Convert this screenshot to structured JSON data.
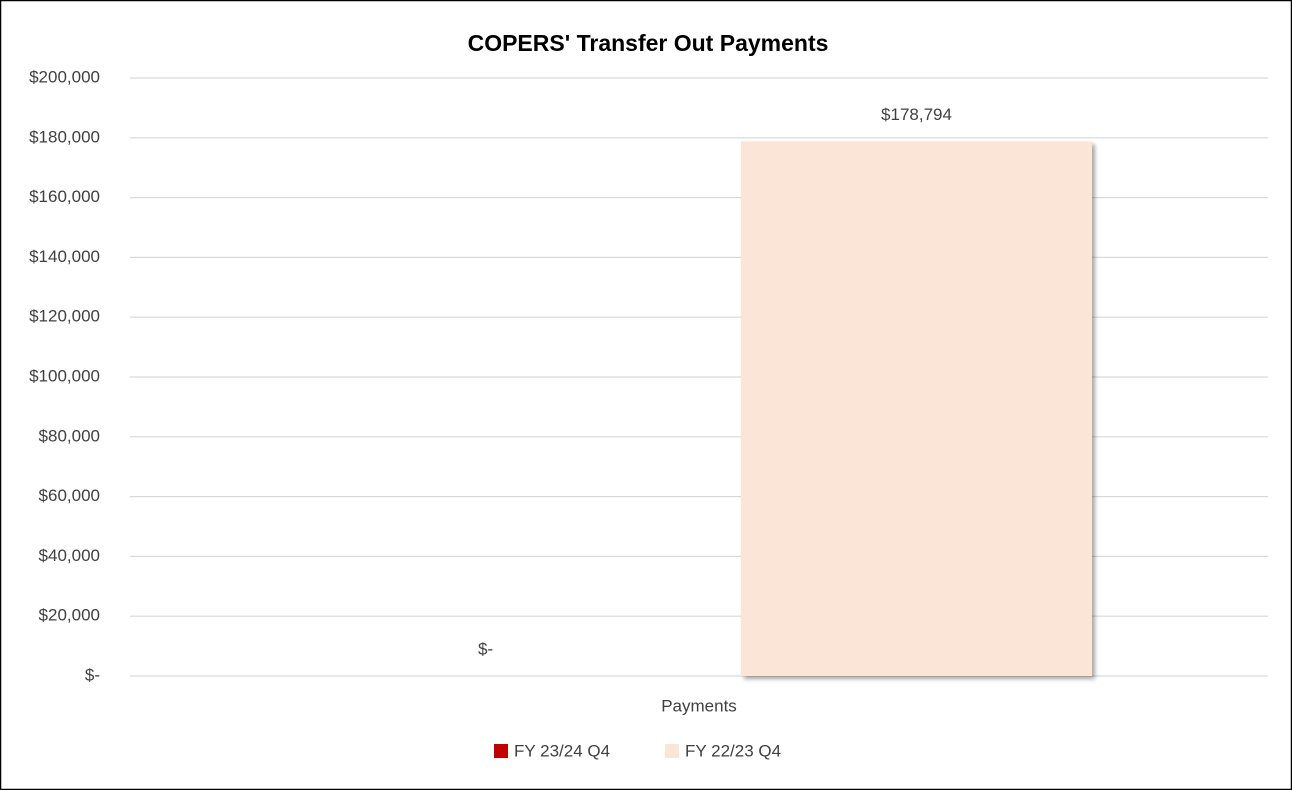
{
  "chart_data": {
    "type": "bar",
    "title": "COPERS' Transfer Out Payments",
    "categories": [
      "Payments"
    ],
    "series": [
      {
        "name": "FY 23/24 Q4",
        "color": "#c00000",
        "values": [
          0
        ],
        "value_labels": [
          "$-"
        ]
      },
      {
        "name": "FY 22/23 Q4",
        "color": "#fbe5d6",
        "values": [
          178794
        ],
        "value_labels": [
          "$178,794"
        ]
      }
    ],
    "ylim": [
      0,
      200000
    ],
    "yticks": [
      {
        "value": 0,
        "label": "$-"
      },
      {
        "value": 20000,
        "label": "$20,000"
      },
      {
        "value": 40000,
        "label": "$40,000"
      },
      {
        "value": 60000,
        "label": "$60,000"
      },
      {
        "value": 80000,
        "label": "$80,000"
      },
      {
        "value": 100000,
        "label": "$100,000"
      },
      {
        "value": 120000,
        "label": "$120,000"
      },
      {
        "value": 140000,
        "label": "$140,000"
      },
      {
        "value": 160000,
        "label": "$160,000"
      },
      {
        "value": 180000,
        "label": "$180,000"
      },
      {
        "value": 200000,
        "label": "$200,000"
      }
    ],
    "grid": true,
    "legend": "bottom"
  }
}
